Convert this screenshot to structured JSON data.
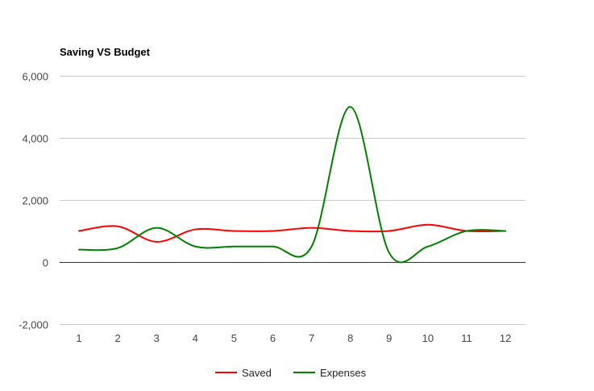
{
  "chart_data": {
    "type": "line",
    "title": "Saving VS Budget",
    "xlabel": "",
    "ylabel": "",
    "x": [
      1,
      2,
      3,
      4,
      5,
      6,
      7,
      8,
      9,
      10,
      11,
      12
    ],
    "x_tick_labels": [
      "1",
      "2",
      "3",
      "4",
      "5",
      "6",
      "7",
      "8",
      "9",
      "10",
      "11",
      "12"
    ],
    "ylim": [
      -2000,
      6000
    ],
    "y_ticks": [
      -2000,
      0,
      2000,
      4000,
      6000
    ],
    "y_tick_labels": [
      "-2,000",
      "0",
      "2,000",
      "4,000",
      "6,000"
    ],
    "grid": true,
    "smooth": true,
    "legend_position": "bottom",
    "series": [
      {
        "name": "Saved",
        "color": "#ff0000",
        "values": [
          1000,
          1150,
          650,
          1050,
          1000,
          1000,
          1100,
          1000,
          1000,
          1200,
          1000,
          1000
        ]
      },
      {
        "name": "Expenses",
        "color": "#008000",
        "values": [
          400,
          450,
          1100,
          500,
          500,
          500,
          500,
          5000,
          300,
          500,
          1000,
          1000
        ]
      }
    ]
  }
}
